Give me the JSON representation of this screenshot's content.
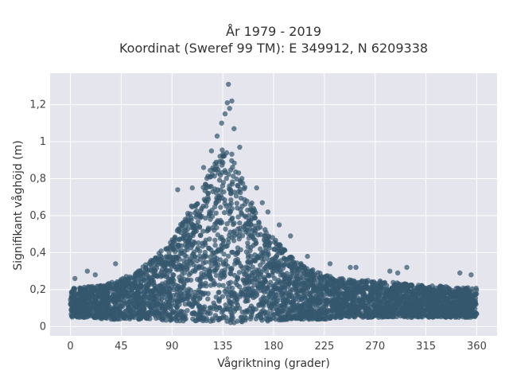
{
  "chart_data": {
    "type": "scatter",
    "title": "År 1979 - 2019",
    "subtitle": "Koordinat (Sweref 99 TM): E 349912, N 6209338",
    "xlabel": "Vågriktning (grader)",
    "ylabel": "Signifikant våghöjd (m)",
    "xlim": [
      -18,
      378
    ],
    "ylim": [
      -0.05,
      1.37
    ],
    "xticks": [
      0,
      45,
      90,
      135,
      180,
      225,
      270,
      315,
      360
    ],
    "xtick_labels": [
      "0",
      "45",
      "90",
      "135",
      "180",
      "225",
      "270",
      "315",
      "360"
    ],
    "yticks": [
      0,
      0.2,
      0.4,
      0.6,
      0.8,
      1.0,
      1.2
    ],
    "ytick_labels": [
      "0",
      "0,2",
      "0,4",
      "0,6",
      "0,8",
      "1",
      "1,2"
    ],
    "grid": true,
    "legend": "none",
    "marker_color": "#34586e",
    "background_color": "#e5e5ee",
    "series": [
      {
        "x": [
          0,
          10,
          20,
          30,
          45,
          60,
          75,
          90,
          100,
          110,
          120,
          130,
          135,
          140,
          150,
          160,
          170,
          180,
          195,
          210,
          225,
          240,
          255,
          270,
          285,
          300,
          315,
          330,
          345,
          360
        ],
        "y_max": [
          0.22,
          0.21,
          0.22,
          0.23,
          0.26,
          0.3,
          0.38,
          0.47,
          0.58,
          0.68,
          0.8,
          0.92,
          1.0,
          0.97,
          0.85,
          0.68,
          0.56,
          0.48,
          0.38,
          0.32,
          0.28,
          0.26,
          0.25,
          0.25,
          0.24,
          0.23,
          0.22,
          0.22,
          0.21,
          0.21
        ],
        "y_min": [
          0.05,
          0.05,
          0.05,
          0.04,
          0.04,
          0.04,
          0.04,
          0.03,
          0.03,
          0.03,
          0.03,
          0.02,
          0.02,
          0.02,
          0.02,
          0.03,
          0.03,
          0.03,
          0.04,
          0.04,
          0.04,
          0.05,
          0.05,
          0.05,
          0.05,
          0.05,
          0.05,
          0.05,
          0.05,
          0.05
        ],
        "outliers": [
          [
            4,
            0.26
          ],
          [
            15,
            0.3
          ],
          [
            22,
            0.28
          ],
          [
            40,
            0.34
          ],
          [
            95,
            0.74
          ],
          [
            108,
            0.75
          ],
          [
            118,
            0.86
          ],
          [
            125,
            0.95
          ],
          [
            130,
            1.03
          ],
          [
            134,
            1.1
          ],
          [
            137,
            1.15
          ],
          [
            139,
            1.21
          ],
          [
            141,
            1.18
          ],
          [
            143,
            1.22
          ],
          [
            140,
            1.31
          ],
          [
            145,
            1.07
          ],
          [
            150,
            0.97
          ],
          [
            165,
            0.75
          ],
          [
            170,
            0.67
          ],
          [
            175,
            0.62
          ],
          [
            185,
            0.55
          ],
          [
            195,
            0.49
          ],
          [
            210,
            0.38
          ],
          [
            230,
            0.34
          ],
          [
            248,
            0.32
          ],
          [
            253,
            0.32
          ],
          [
            283,
            0.3
          ],
          [
            290,
            0.29
          ],
          [
            298,
            0.32
          ],
          [
            345,
            0.29
          ],
          [
            355,
            0.28
          ]
        ]
      }
    ]
  }
}
